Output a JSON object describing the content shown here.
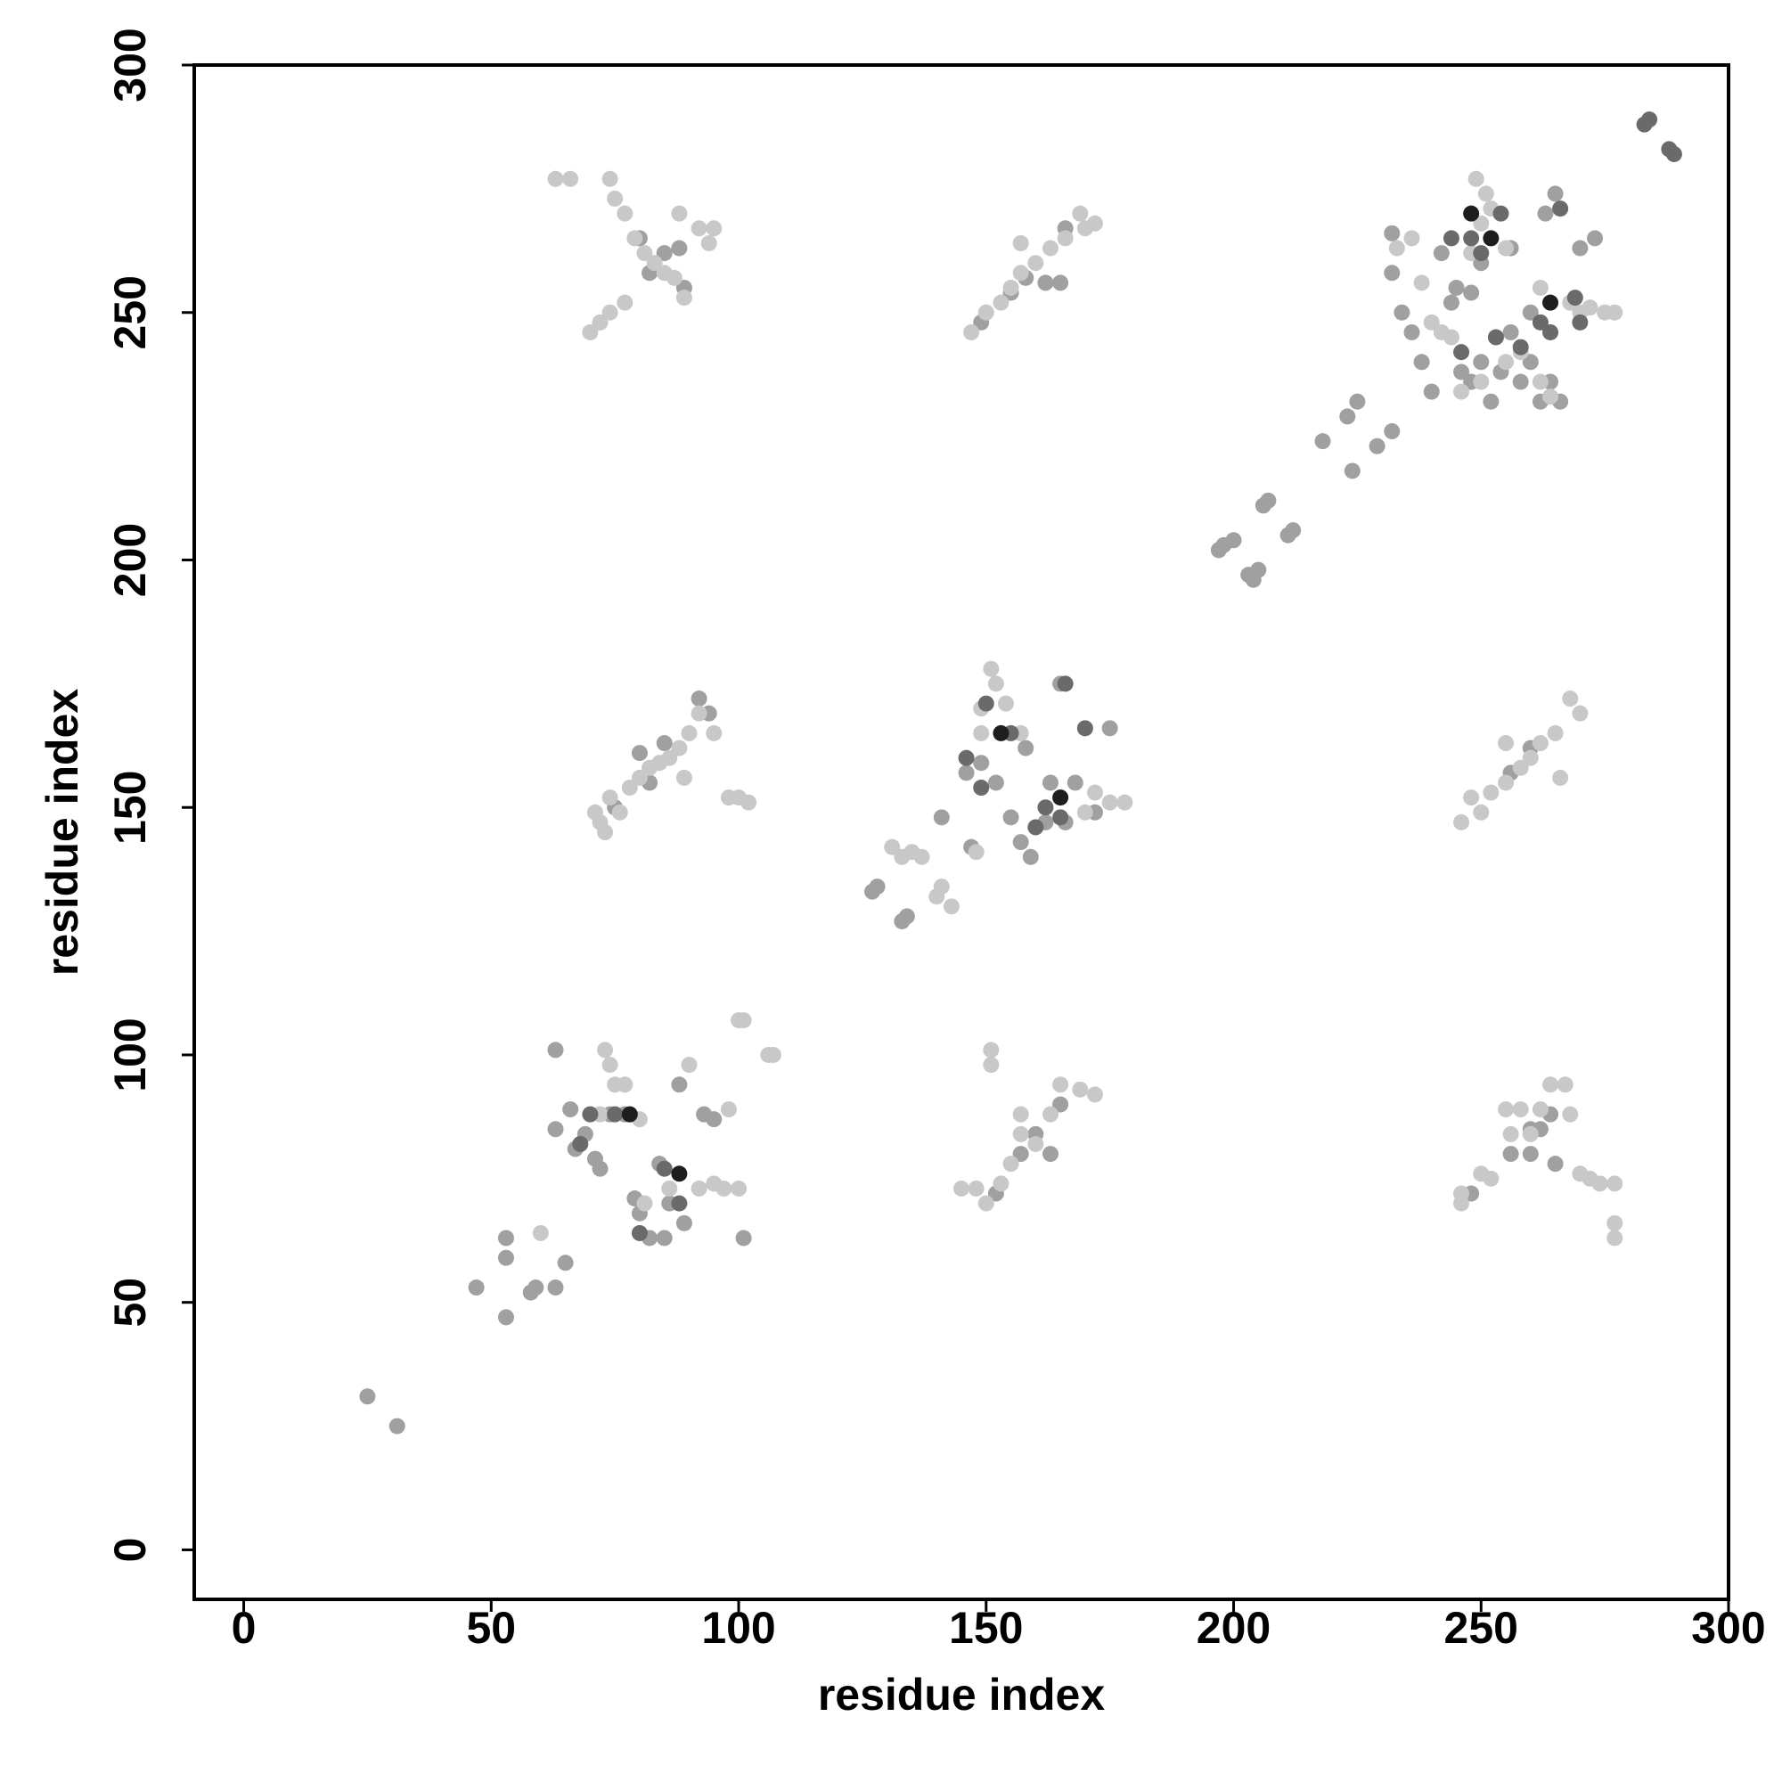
{
  "chart_data": {
    "type": "scatter",
    "x_label": "residue index",
    "y_label": "residue index",
    "xlim": [
      -10,
      300
    ],
    "ylim": [
      -10,
      300
    ],
    "xticks": [
      0,
      50,
      100,
      150,
      200,
      250,
      300
    ],
    "yticks": [
      0,
      50,
      100,
      150,
      200,
      250,
      300
    ],
    "series": [
      {
        "color": "#a0a0a0",
        "x": [
          25,
          31,
          47,
          53,
          53,
          53,
          58,
          59,
          63,
          65,
          63,
          63,
          66,
          67,
          69,
          71,
          72,
          74,
          77,
          79,
          80,
          82,
          85,
          84,
          86,
          89,
          93,
          95,
          88,
          101,
          152,
          157,
          160,
          163,
          165,
          248,
          256,
          260,
          264,
          265,
          260,
          262,
          127,
          128,
          133,
          134,
          141,
          147,
          146,
          149,
          152,
          155,
          157,
          158,
          159,
          162,
          163,
          166,
          168,
          172,
          175,
          165,
          75,
          80,
          82,
          85,
          92,
          94,
          149,
          155,
          158,
          162,
          165,
          166,
          80,
          82,
          85,
          88,
          89,
          256,
          260,
          197,
          198,
          200,
          203,
          204,
          205,
          206,
          207,
          211,
          212,
          218,
          223,
          225,
          224,
          229,
          232,
          232,
          232,
          234,
          236,
          238,
          240,
          242,
          244,
          246,
          248,
          250,
          252,
          254,
          256,
          258,
          260,
          262,
          264,
          266,
          256,
          260,
          263,
          265,
          270,
          273,
          245,
          248,
          250
        ],
        "values": [
          31,
          25,
          53,
          47,
          59,
          63,
          52,
          53,
          53,
          58,
          101,
          85,
          89,
          81,
          84,
          79,
          77,
          88,
          88,
          71,
          68,
          63,
          63,
          78,
          70,
          66,
          88,
          87,
          94,
          63,
          72,
          80,
          84,
          80,
          90,
          72,
          80,
          80,
          88,
          78,
          85,
          85,
          133,
          134,
          127,
          128,
          148,
          142,
          157,
          159,
          155,
          148,
          143,
          162,
          140,
          147,
          155,
          147,
          155,
          149,
          166,
          175,
          150,
          161,
          155,
          163,
          172,
          169,
          248,
          254,
          257,
          256,
          256,
          267,
          265,
          258,
          262,
          263,
          255,
          157,
          162,
          202,
          203,
          204,
          197,
          196,
          198,
          211,
          212,
          205,
          206,
          224,
          229,
          232,
          218,
          223,
          226,
          266,
          258,
          250,
          246,
          240,
          234,
          262,
          252,
          238,
          236,
          240,
          232,
          238,
          246,
          236,
          240,
          232,
          236,
          232,
          263,
          250,
          270,
          274,
          263,
          265,
          255,
          254,
          260
        ]
      },
      {
        "color": "#c8c8c8",
        "x": [
          60,
          73,
          74,
          75,
          77,
          72,
          80,
          90,
          98,
          100,
          101,
          107,
          106,
          95,
          97,
          100,
          92,
          86,
          81,
          151,
          151,
          148,
          150,
          153,
          157,
          157,
          160,
          163,
          165,
          169,
          172,
          145,
          155,
          246,
          246,
          250,
          252,
          255,
          258,
          262,
          264,
          267,
          268,
          270,
          272,
          274,
          277,
          277,
          277,
          260,
          256,
          131,
          133,
          135,
          137,
          141,
          143,
          140,
          151,
          152,
          154,
          157,
          149,
          149,
          172,
          175,
          178,
          170,
          148,
          71,
          72,
          74,
          76,
          78,
          80,
          82,
          84,
          86,
          88,
          90,
          92,
          95,
          98,
          100,
          102,
          89,
          73,
          147,
          150,
          153,
          155,
          157,
          160,
          163,
          166,
          170,
          172,
          157,
          169,
          63,
          66,
          74,
          75,
          77,
          79,
          81,
          83,
          85,
          87,
          89,
          77,
          74,
          72,
          70,
          95,
          94,
          88,
          92,
          246,
          248,
          250,
          252,
          255,
          258,
          260,
          262,
          265,
          268,
          270,
          255,
          266,
          233,
          236,
          238,
          240,
          242,
          244,
          249,
          251,
          252,
          248,
          250,
          255,
          262,
          268,
          272,
          275,
          277,
          246,
          250,
          255,
          258,
          262,
          264,
          270
        ],
        "values": [
          64,
          101,
          98,
          94,
          94,
          88,
          87,
          98,
          89,
          107,
          107,
          100,
          100,
          74,
          73,
          73,
          73,
          73,
          70,
          101,
          98,
          73,
          70,
          74,
          84,
          88,
          82,
          88,
          94,
          93,
          92,
          73,
          78,
          70,
          72,
          76,
          75,
          89,
          89,
          89,
          94,
          94,
          88,
          76,
          75,
          74,
          74,
          66,
          63,
          84,
          84,
          142,
          140,
          141,
          140,
          134,
          130,
          132,
          178,
          175,
          171,
          165,
          165,
          170,
          153,
          151,
          151,
          149,
          141,
          149,
          147,
          152,
          149,
          154,
          156,
          158,
          159,
          160,
          162,
          165,
          169,
          165,
          152,
          152,
          151,
          156,
          145,
          246,
          250,
          252,
          255,
          258,
          260,
          263,
          265,
          267,
          268,
          264,
          270,
          277,
          277,
          277,
          273,
          270,
          265,
          262,
          260,
          258,
          257,
          253,
          252,
          250,
          248,
          246,
          267,
          264,
          270,
          267,
          147,
          152,
          149,
          153,
          155,
          158,
          160,
          163,
          165,
          172,
          169,
          163,
          156,
          263,
          265,
          256,
          248,
          246,
          245,
          277,
          274,
          271,
          262,
          268,
          263,
          255,
          252,
          251,
          250,
          250,
          234,
          236,
          240,
          242,
          236,
          233,
          250
        ]
      },
      {
        "color": "#6a6a6a",
        "x": [
          70,
          68,
          75,
          85,
          88,
          80,
          146,
          149,
          150,
          155,
          160,
          162,
          165,
          166,
          170,
          248,
          250,
          254,
          253,
          258,
          262,
          264,
          269,
          270,
          266,
          246,
          244,
          283,
          284,
          289,
          288
        ],
        "values": [
          88,
          82,
          88,
          77,
          70,
          64,
          160,
          154,
          171,
          165,
          146,
          150,
          148,
          175,
          166,
          265,
          262,
          270,
          245,
          243,
          248,
          246,
          253,
          248,
          271,
          242,
          265,
          288,
          289,
          282,
          283
        ]
      },
      {
        "color": "#1e1e1e",
        "x": [
          78,
          88,
          153,
          165,
          248,
          252,
          264
        ],
        "values": [
          88,
          76,
          165,
          152,
          270,
          265,
          252
        ]
      }
    ]
  }
}
